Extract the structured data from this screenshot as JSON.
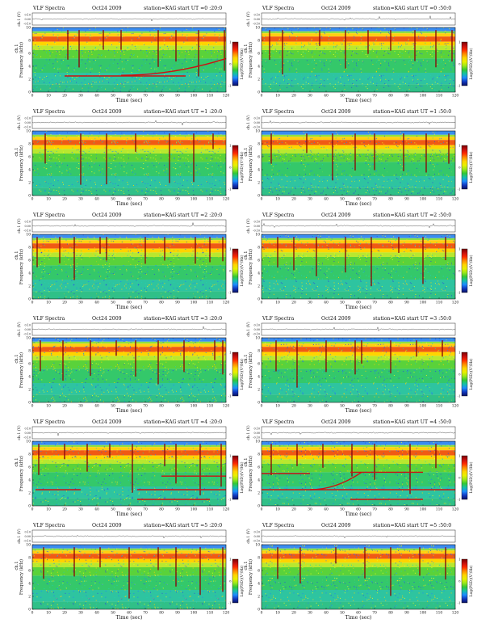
{
  "page": {
    "colormap": {
      "stops": [
        "#7a0000",
        "#c41010",
        "#ff2a00",
        "#ff8a00",
        "#ffd400",
        "#e8f000",
        "#9ce81a",
        "#34c834",
        "#16c0a8",
        "#1e8cff",
        "#1238c0",
        "#0a1060"
      ],
      "noise_specks": [
        "#1e7cff",
        "#2a4cd8",
        "#e8ff20",
        "#ffd400",
        "#20d0b0"
      ],
      "trace_color": "#111111",
      "band_color": "#cc1111"
    }
  },
  "panel_labels": {
    "chart_title": "VLF Spectra",
    "date": "Oct24 2009",
    "station": "station=KAG",
    "start_prefix": "start  UT =",
    "ch_axis_label": "ch.1 (V)",
    "ch_label": "ch.1",
    "freq_axis_label": "Frequency (kHz)",
    "time_axis_label": "Time (sec)",
    "colorbar_label": "Log(PSD)(V²/Hz)"
  },
  "chart_data": [
    {
      "type": "heatmap",
      "start_ut": "0 :20:0",
      "x": [
        0,
        10,
        20,
        30,
        40,
        50,
        60,
        70,
        80,
        90,
        100,
        110,
        120
      ],
      "y_freq_khz": [
        0,
        2,
        4,
        6,
        8,
        10
      ],
      "y_amp_v": [
        0.1,
        0.0,
        -0.1
      ],
      "xlim": [
        0,
        120
      ],
      "ylim": [
        0,
        10
      ],
      "color_ticks": [
        1,
        0,
        -1
      ],
      "vertical_hiss_times_sec": [
        22,
        29,
        44,
        55,
        78,
        89,
        103,
        119
      ],
      "emission_bands": [
        {
          "kind": "tone",
          "freq_khz": 2.5,
          "start_sec": 20,
          "end_sec": 95
        },
        {
          "kind": "rising",
          "start_khz": 2.6,
          "end_khz": 5.2,
          "start_sec": 55,
          "end_sec": 120
        }
      ]
    },
    {
      "type": "heatmap",
      "start_ut": "0 :50:0",
      "x": [
        0,
        10,
        20,
        30,
        40,
        50,
        60,
        70,
        80,
        90,
        100,
        110,
        120
      ],
      "y_freq_khz": [
        0,
        2,
        4,
        6,
        8,
        10
      ],
      "y_amp_v": [
        0.1,
        0.0,
        -0.1
      ],
      "xlim": [
        0,
        120
      ],
      "ylim": [
        0,
        10
      ],
      "color_ticks": [
        1,
        0,
        -1
      ],
      "vertical_hiss_times_sec": [
        5,
        13,
        36,
        52,
        66,
        80,
        95,
        108,
        118
      ],
      "emission_bands": []
    },
    {
      "type": "heatmap",
      "start_ut": "1 :20:0",
      "x": [
        0,
        10,
        20,
        30,
        40,
        50,
        60,
        70,
        80,
        90,
        100,
        110,
        120
      ],
      "y_freq_khz": [
        0,
        2,
        4,
        6,
        8,
        10
      ],
      "y_amp_v": [
        0.1,
        0.0,
        -0.1
      ],
      "xlim": [
        0,
        120
      ],
      "ylim": [
        0,
        10
      ],
      "color_ticks": [
        1,
        0,
        -1
      ],
      "vertical_hiss_times_sec": [
        8,
        30,
        46,
        64,
        85,
        100,
        112
      ],
      "emission_bands": []
    },
    {
      "type": "heatmap",
      "start_ut": "1 :50:0",
      "x": [
        0,
        10,
        20,
        30,
        40,
        50,
        60,
        70,
        80,
        90,
        100,
        110,
        120
      ],
      "y_freq_khz": [
        0,
        2,
        4,
        6,
        8,
        10
      ],
      "y_amp_v": [
        0.1,
        0.0,
        -0.1
      ],
      "xlim": [
        0,
        120
      ],
      "ylim": [
        0,
        10
      ],
      "color_ticks": [
        1,
        0,
        -1
      ],
      "vertical_hiss_times_sec": [
        6,
        28,
        44,
        58,
        70,
        88,
        102,
        116
      ],
      "emission_bands": []
    },
    {
      "type": "heatmap",
      "start_ut": "2 :20:0",
      "x": [
        0,
        10,
        20,
        30,
        40,
        50,
        60,
        70,
        80,
        90,
        100,
        110,
        120
      ],
      "y_freq_khz": [
        0,
        2,
        4,
        6,
        8,
        10
      ],
      "y_amp_v": [
        0.1,
        0.0,
        -0.1
      ],
      "xlim": [
        0,
        120
      ],
      "ylim": [
        0,
        10
      ],
      "color_ticks": [
        1,
        0,
        -1
      ],
      "vertical_hiss_times_sec": [
        3,
        17,
        26,
        42,
        46,
        70,
        82,
        101,
        110,
        118
      ],
      "emission_bands": []
    },
    {
      "type": "heatmap",
      "start_ut": "2 :50:0",
      "x": [
        0,
        10,
        20,
        30,
        40,
        50,
        60,
        70,
        80,
        90,
        100,
        110,
        120
      ],
      "y_freq_khz": [
        0,
        2,
        4,
        6,
        8,
        10
      ],
      "y_amp_v": [
        0.1,
        0.0,
        -0.1
      ],
      "xlim": [
        0,
        120
      ],
      "ylim": [
        0,
        10
      ],
      "color_ticks": [
        1,
        0,
        -1
      ],
      "vertical_hiss_times_sec": [
        10,
        20,
        34,
        52,
        68,
        85,
        100,
        114
      ],
      "emission_bands": []
    },
    {
      "type": "heatmap",
      "start_ut": "3 :20:0",
      "x": [
        0,
        10,
        20,
        30,
        40,
        50,
        60,
        70,
        80,
        90,
        100,
        110,
        120
      ],
      "y_freq_khz": [
        0,
        2,
        4,
        6,
        8,
        10
      ],
      "y_amp_v": [
        0.1,
        0.0,
        -0.1
      ],
      "xlim": [
        0,
        120
      ],
      "ylim": [
        0,
        10
      ],
      "color_ticks": [
        1,
        0,
        -1
      ],
      "vertical_hiss_times_sec": [
        5,
        19,
        36,
        52,
        64,
        78,
        94,
        113,
        118
      ],
      "emission_bands": []
    },
    {
      "type": "heatmap",
      "start_ut": "3 :50:0",
      "x": [
        0,
        10,
        20,
        30,
        40,
        50,
        60,
        70,
        80,
        90,
        100,
        110,
        120
      ],
      "y_freq_khz": [
        0,
        2,
        4,
        6,
        8,
        10
      ],
      "y_amp_v": [
        0.1,
        0.0,
        -0.1
      ],
      "xlim": [
        0,
        120
      ],
      "ylim": [
        0,
        10
      ],
      "color_ticks": [
        1,
        0,
        -1
      ],
      "vertical_hiss_times_sec": [
        9,
        22,
        40,
        58,
        62,
        80,
        96,
        112
      ],
      "emission_bands": []
    },
    {
      "type": "heatmap",
      "start_ut": "4 :20:0",
      "x": [
        0,
        10,
        20,
        30,
        40,
        50,
        60,
        70,
        80,
        90,
        100,
        110,
        120
      ],
      "y_freq_khz": [
        0,
        2,
        4,
        6,
        8,
        10
      ],
      "y_amp_v": [
        0.1,
        0.0,
        -0.1
      ],
      "xlim": [
        0,
        120
      ],
      "ylim": [
        0,
        10
      ],
      "color_ticks": [
        1,
        0,
        -1
      ],
      "vertical_hiss_times_sec": [
        4,
        20,
        34,
        48,
        62,
        82,
        89,
        104,
        117
      ],
      "emission_bands": [
        {
          "kind": "tone",
          "freq_khz": 2.5,
          "start_sec": 2,
          "end_sec": 30
        },
        {
          "kind": "tone",
          "freq_khz": 2.5,
          "start_sec": 65,
          "end_sec": 120
        },
        {
          "kind": "tone",
          "freq_khz": 1.0,
          "start_sec": 65,
          "end_sec": 110
        },
        {
          "kind": "tone",
          "freq_khz": 4.6,
          "start_sec": 80,
          "end_sec": 120
        }
      ]
    },
    {
      "type": "heatmap",
      "start_ut": "4 :50:0",
      "x": [
        0,
        10,
        20,
        30,
        40,
        50,
        60,
        70,
        80,
        90,
        100,
        110,
        120
      ],
      "y_freq_khz": [
        0,
        2,
        4,
        6,
        8,
        10
      ],
      "y_amp_v": [
        0.1,
        0.0,
        -0.1
      ],
      "xlim": [
        0,
        120
      ],
      "ylim": [
        0,
        10
      ],
      "color_ticks": [
        1,
        0,
        -1
      ],
      "vertical_hiss_times_sec": [
        6,
        22,
        38,
        56,
        70,
        92,
        108
      ],
      "emission_bands": [
        {
          "kind": "tone",
          "freq_khz": 2.5,
          "start_sec": 0,
          "end_sec": 120
        },
        {
          "kind": "tone",
          "freq_khz": 5.0,
          "start_sec": 0,
          "end_sec": 30
        },
        {
          "kind": "tone",
          "freq_khz": 5.2,
          "start_sec": 55,
          "end_sec": 100
        },
        {
          "kind": "tone",
          "freq_khz": 1.0,
          "start_sec": 55,
          "end_sec": 100
        },
        {
          "kind": "rising",
          "start_khz": 2.5,
          "end_khz": 5.2,
          "start_sec": 30,
          "end_sec": 62
        }
      ]
    },
    {
      "type": "heatmap",
      "start_ut": "5 :20:0",
      "x": [
        0,
        10,
        20,
        30,
        40,
        50,
        60,
        70,
        80,
        90,
        100,
        110,
        120
      ],
      "y_freq_khz": [
        0,
        2,
        4,
        6,
        8,
        10
      ],
      "y_amp_v": [
        0.1,
        0.0,
        -0.1
      ],
      "xlim": [
        0,
        120
      ],
      "ylim": [
        0,
        10
      ],
      "color_ticks": [
        1,
        0,
        -1
      ],
      "vertical_hiss_times_sec": [
        7,
        26,
        42,
        60,
        78,
        89,
        104,
        118
      ],
      "emission_bands": []
    },
    {
      "type": "heatmap",
      "start_ut": "5 :50:0",
      "x": [
        0,
        10,
        20,
        30,
        40,
        50,
        60,
        70,
        80,
        90,
        100,
        110,
        120
      ],
      "y_freq_khz": [
        0,
        2,
        4,
        6,
        8,
        10
      ],
      "y_amp_v": [
        0.1,
        0.0,
        -0.1
      ],
      "xlim": [
        0,
        120
      ],
      "ylim": [
        0,
        10
      ],
      "color_ticks": [
        1,
        0,
        -1
      ],
      "vertical_hiss_times_sec": [
        10,
        24,
        46,
        64,
        80,
        98,
        114
      ],
      "emission_bands": []
    }
  ]
}
